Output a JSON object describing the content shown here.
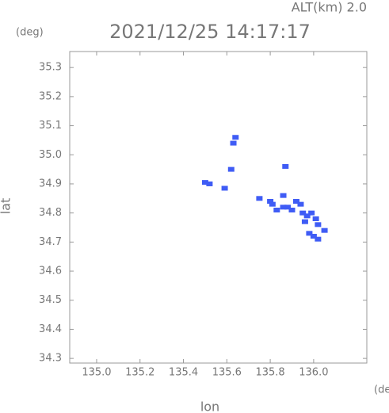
{
  "chart_data": {
    "type": "scatter",
    "title": "2021/12/25 14:17:17",
    "subtitle": "ALT(km) 2.0",
    "y_unit": "(deg)",
    "x_unit": "(deg)",
    "ylabel": "lat",
    "xlabel": "lon",
    "color": "#3f5cf5",
    "x": [
      135.64,
      135.63,
      135.62,
      135.5,
      135.52,
      135.59,
      135.75,
      135.8,
      135.81,
      135.87,
      135.86,
      135.83,
      135.86,
      135.88,
      135.9,
      135.92,
      135.94,
      135.95,
      135.97,
      135.99,
      135.96,
      136.01,
      136.02,
      135.98,
      136.0,
      136.02,
      136.05
    ],
    "values": [
      35.06,
      35.04,
      34.95,
      34.905,
      34.9,
      34.885,
      34.85,
      34.84,
      34.83,
      34.96,
      34.86,
      34.81,
      34.82,
      34.82,
      34.81,
      34.84,
      34.83,
      34.8,
      34.79,
      34.8,
      34.77,
      34.78,
      34.76,
      34.73,
      34.72,
      34.71,
      34.74
    ],
    "xlim": [
      134.876,
      136.245
    ],
    "ylim": [
      34.284,
      35.355
    ],
    "xticks": [
      {
        "value": 135,
        "label": "135.0"
      },
      135.2,
      135.4,
      135.6,
      135.8,
      {
        "value": 136,
        "label": "136.0"
      }
    ],
    "yticks": [
      34.3,
      34.4,
      34.5,
      34.6,
      34.7,
      34.8,
      34.9,
      {
        "value": 35,
        "label": "35.0"
      },
      35.1,
      35.2,
      35.3
    ]
  }
}
